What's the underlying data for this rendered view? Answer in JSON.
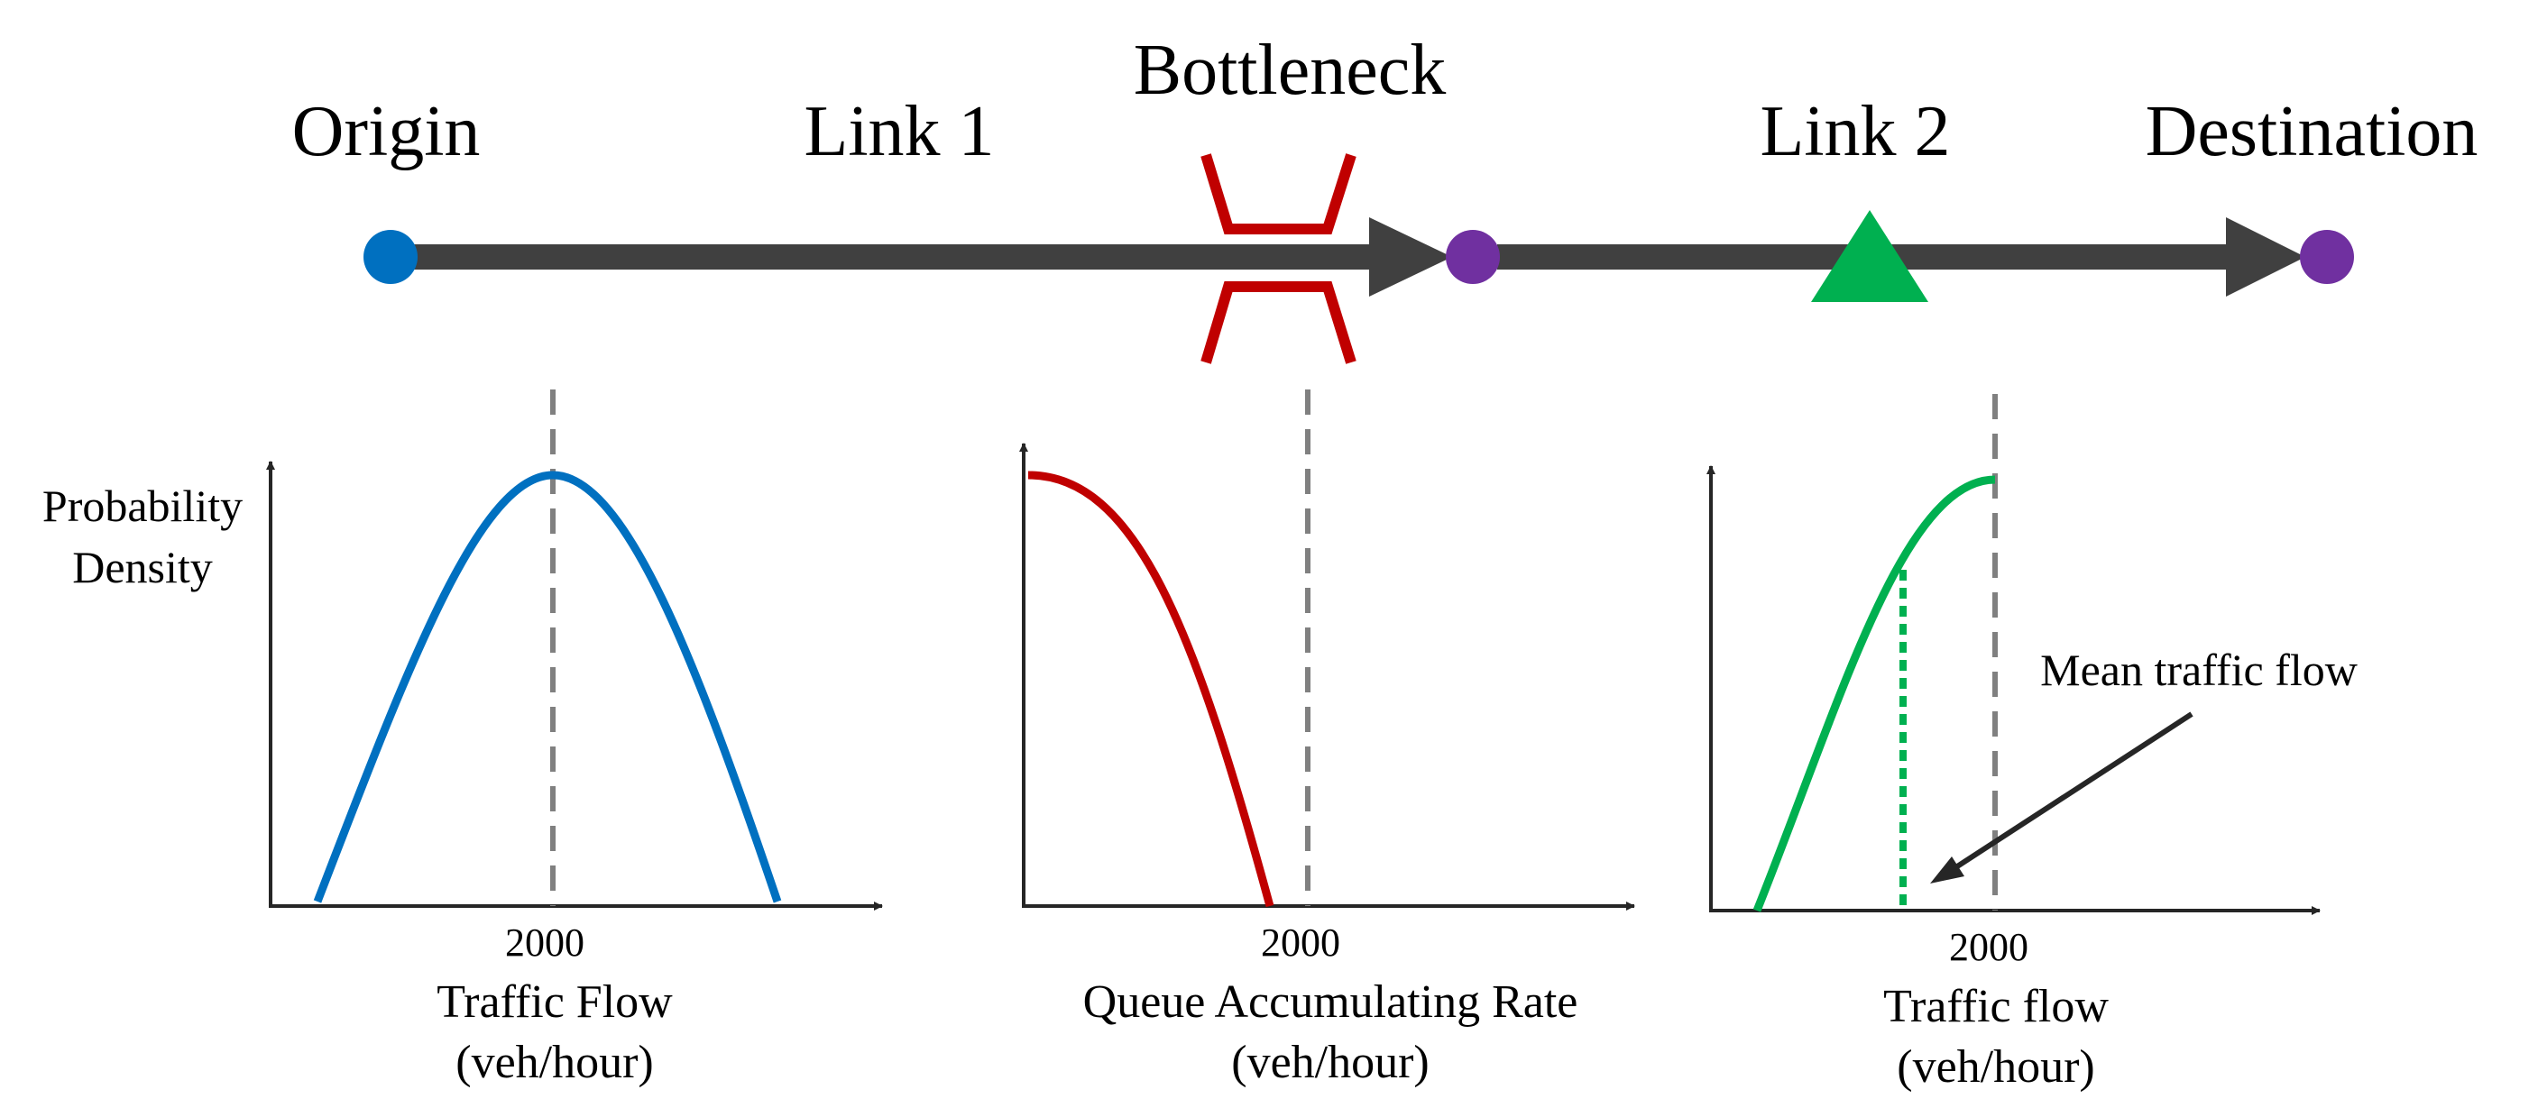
{
  "route": {
    "origin": "Origin",
    "link1": "Link 1",
    "bottleneck": "Bottleneck",
    "link2": "Link 2",
    "destination": "Destination"
  },
  "panels": {
    "left": {
      "y_label_line1": "Probability",
      "y_label_line2": "Density",
      "tick": "2000",
      "x_label_line1": "Traffic Flow",
      "x_label_line2": "(veh/hour)"
    },
    "middle": {
      "tick": "2000",
      "x_label_line1": "Queue Accumulating Rate",
      "x_label_line2": "(veh/hour)"
    },
    "right": {
      "tick": "2000",
      "x_label_line1": "Traffic flow",
      "x_label_line2": "(veh/hour)",
      "annotation": "Mean traffic flow"
    }
  },
  "colors": {
    "arrow": "#404040",
    "origin_node": "#0070C0",
    "node": "#7030A0",
    "bottleneck": "#C00000",
    "sensor": "#00B050",
    "left_curve": "#0070C0",
    "middle_curve": "#C00000",
    "right_curve": "#00B050",
    "dashed": "#808080",
    "axis": "#262626"
  }
}
